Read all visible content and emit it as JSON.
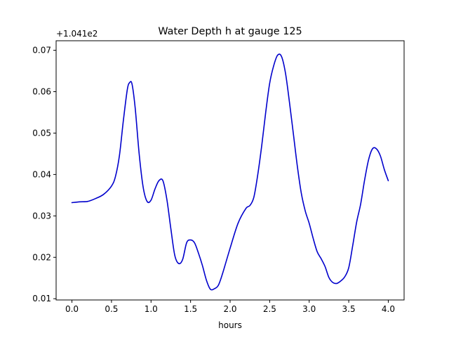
{
  "chart_data": {
    "type": "line",
    "title": "Water Depth h at gauge 125",
    "xlabel": "hours",
    "ylabel": "",
    "offset_label": "+1.041e2",
    "xlim": [
      -0.2,
      4.2
    ],
    "ylim": [
      0.0097,
      0.0723
    ],
    "xticks": [
      0.0,
      0.5,
      1.0,
      1.5,
      2.0,
      2.5,
      3.0,
      3.5,
      4.0
    ],
    "xtick_labels": [
      "0.0",
      "0.5",
      "1.0",
      "1.5",
      "2.0",
      "2.5",
      "3.0",
      "3.5",
      "4.0"
    ],
    "yticks": [
      0.01,
      0.02,
      0.03,
      0.04,
      0.05,
      0.06,
      0.07
    ],
    "ytick_labels": [
      "0.01",
      "0.02",
      "0.03",
      "0.04",
      "0.05",
      "0.06",
      "0.07"
    ],
    "grid": false,
    "line_color": "#0000cc",
    "series": [
      {
        "x": [
          0.0,
          0.1,
          0.2,
          0.3,
          0.4,
          0.5,
          0.55,
          0.6,
          0.65,
          0.7,
          0.73,
          0.76,
          0.8,
          0.85,
          0.9,
          0.95,
          1.0,
          1.05,
          1.1,
          1.15,
          1.2,
          1.25,
          1.3,
          1.35,
          1.4,
          1.45,
          1.5,
          1.55,
          1.6,
          1.65,
          1.7,
          1.75,
          1.8,
          1.85,
          1.9,
          2.0,
          2.1,
          2.2,
          2.25,
          2.3,
          2.35,
          2.4,
          2.45,
          2.5,
          2.55,
          2.6,
          2.65,
          2.7,
          2.75,
          2.8,
          2.85,
          2.9,
          2.95,
          3.0,
          3.05,
          3.1,
          3.15,
          3.2,
          3.25,
          3.3,
          3.35,
          3.4,
          3.45,
          3.5,
          3.55,
          3.6,
          3.65,
          3.7,
          3.75,
          3.8,
          3.85,
          3.9,
          3.95,
          4.0
        ],
        "y": [
          0.0332,
          0.0334,
          0.0335,
          0.0342,
          0.0352,
          0.0372,
          0.0395,
          0.0445,
          0.053,
          0.0605,
          0.0622,
          0.0618,
          0.056,
          0.045,
          0.037,
          0.0335,
          0.0338,
          0.0365,
          0.0385,
          0.0385,
          0.034,
          0.027,
          0.0205,
          0.0185,
          0.0195,
          0.0235,
          0.0242,
          0.0235,
          0.021,
          0.018,
          0.0145,
          0.0123,
          0.0124,
          0.0132,
          0.0158,
          0.0222,
          0.0282,
          0.0318,
          0.0325,
          0.0345,
          0.04,
          0.047,
          0.055,
          0.062,
          0.0662,
          0.0688,
          0.0685,
          0.0645,
          0.0575,
          0.0498,
          0.042,
          0.0355,
          0.0312,
          0.0282,
          0.0246,
          0.0214,
          0.0197,
          0.0178,
          0.0151,
          0.0139,
          0.0137,
          0.0143,
          0.0153,
          0.0175,
          0.0228,
          0.0285,
          0.0328,
          0.0386,
          0.0435,
          0.0462,
          0.0462,
          0.0445,
          0.0412,
          0.0385
        ]
      }
    ]
  }
}
